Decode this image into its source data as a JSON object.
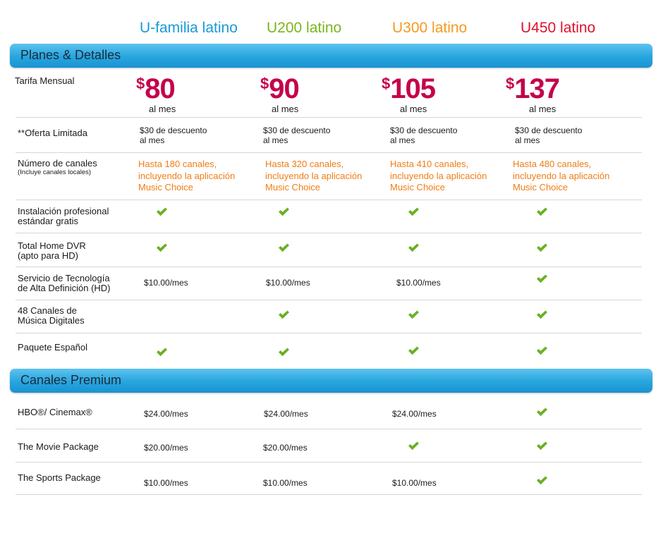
{
  "colors": {
    "plan1": "#1a9ad6",
    "plan2": "#7ab51d",
    "plan3": "#f39a1f",
    "plan4": "#e0102e",
    "price": "#c5004b",
    "channels": "#ef7d16",
    "check": "#6ab023",
    "band": "#27a5df"
  },
  "plans": [
    {
      "name": "U-familia latino",
      "price": "80",
      "per": "al mes"
    },
    {
      "name": "U200 latino",
      "price": "90",
      "per": "al mes"
    },
    {
      "name": "U300 latino",
      "price": "105",
      "per": "al mes"
    },
    {
      "name": "U450 latino",
      "price": "137",
      "per": "al mes"
    }
  ],
  "currency": "$",
  "sections": {
    "plans_details": "Planes & Detalles",
    "premium": "Canales Premium"
  },
  "rows": {
    "tarifa": "Tarifa  Mensual",
    "oferta": {
      "label": "**Oferta Limitada",
      "line1": "$30 de descuento",
      "line2": "al mes"
    },
    "canales": {
      "label": "Número de canales",
      "sublabel": "(Incluye canales locales)",
      "values": [
        [
          "Hasta 180 canales,",
          "incluyendo la aplicación",
          "Music Choice"
        ],
        [
          "Hasta 320 canales,",
          "incluyendo la aplicación",
          "Music Choice"
        ],
        [
          "Hasta 410 canales,",
          "incluyendo la aplicación",
          "Music Choice"
        ],
        [
          "Hasta 480 canales,",
          "incluyendo la aplicación",
          "Music Choice"
        ]
      ]
    },
    "instalacion": {
      "line1": "Instalación profesional",
      "line2": "estándar gratis"
    },
    "dvr": {
      "line1": "Total Home DVR",
      "line2": "(apto para HD)"
    },
    "hd": {
      "line1": "Servicio de Tecnología",
      "line2": "de Alta Definición (HD)",
      "price": "$10.00/mes"
    },
    "musica": {
      "line1": "48 Canales de",
      "line2": "Música Digitales"
    },
    "espanol": "Paquete Español",
    "hbo": {
      "label": "HBO®/ Cinemax®",
      "price": "$24.00/mes"
    },
    "movie": {
      "label": "The Movie Package",
      "price": "$20.00/mes"
    },
    "sports": {
      "label": "The Sports Package",
      "price": "$10.00/mes"
    }
  }
}
